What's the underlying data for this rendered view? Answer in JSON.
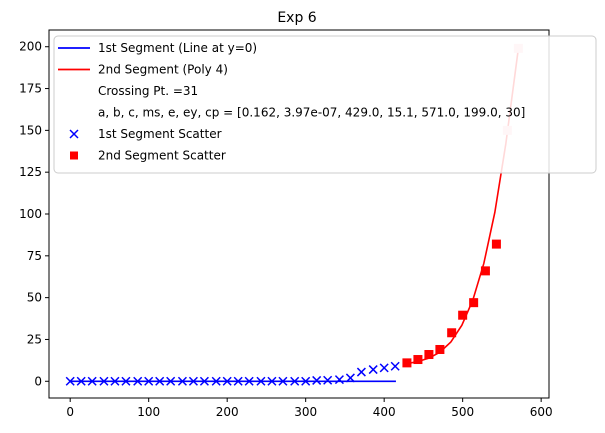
{
  "chart_data": {
    "type": "scatter",
    "title": "Exp 6",
    "xlabel": "",
    "ylabel": "",
    "xlim": [
      -27,
      610
    ],
    "ylim": [
      -10,
      210
    ],
    "xticks": [
      0,
      100,
      200,
      300,
      400,
      500,
      600
    ],
    "yticks": [
      0,
      25,
      50,
      75,
      100,
      125,
      150,
      175,
      200
    ],
    "legend_position": "top-right",
    "colors": {
      "segment1": "#0000ff",
      "segment2": "#ff0000",
      "segment2_tail": "#ffc0cb"
    },
    "legend": [
      {
        "kind": "line",
        "color": "#0000ff",
        "text": "1st Segment (Line at y=0)"
      },
      {
        "kind": "line",
        "color": "#ff0000",
        "text": "2nd Segment (Poly 4)"
      },
      {
        "kind": "none",
        "text": "Crossing Pt. =31"
      },
      {
        "kind": "none",
        "text": "a, b, c, ms, e, ey, cp = [0.162, 3.97e-07, 429.0, 15.1, 571.0, 199.0, 30]"
      },
      {
        "kind": "x",
        "color": "#0000ff",
        "text": "1st Segment Scatter"
      },
      {
        "kind": "square",
        "color": "#ff0000",
        "text": "2nd Segment Scatter"
      }
    ],
    "series": [
      {
        "name": "1st Segment (Line at y=0)",
        "kind": "line",
        "x": [
          0,
          415
        ],
        "y": [
          0,
          0
        ]
      },
      {
        "name": "2nd Segment (Poly 4)",
        "kind": "line",
        "x": [
          429,
          443,
          457,
          471,
          485,
          499,
          513,
          527,
          541,
          555,
          571
        ],
        "y": [
          10.5,
          11.8,
          13.8,
          17.4,
          23.5,
          33.5,
          48.6,
          70.5,
          101,
          142,
          199
        ]
      },
      {
        "name": "1st Segment Scatter",
        "kind": "scatter",
        "marker": "x",
        "x": [
          0,
          14,
          28,
          43,
          57,
          71,
          86,
          100,
          114,
          128,
          143,
          157,
          171,
          186,
          200,
          214,
          228,
          243,
          257,
          271,
          286,
          300,
          314,
          328,
          343,
          357,
          371,
          386,
          400,
          414
        ],
        "y": [
          0,
          0,
          0,
          0,
          0,
          0,
          0,
          0,
          0,
          0,
          0,
          0,
          0,
          0,
          0,
          0,
          0,
          0,
          0,
          0,
          0,
          0,
          0.5,
          0.6,
          1.0,
          2.0,
          5.5,
          7.0,
          8.0,
          9.0
        ]
      },
      {
        "name": "2nd Segment Scatter",
        "kind": "scatter",
        "marker": "square",
        "x": [
          429,
          443,
          457,
          471,
          486,
          500,
          514,
          529,
          543,
          557,
          571
        ],
        "y": [
          11,
          13,
          16,
          19,
          29,
          39.5,
          47,
          66,
          82,
          150,
          199
        ],
        "tail_highlight_last": 2
      }
    ]
  }
}
